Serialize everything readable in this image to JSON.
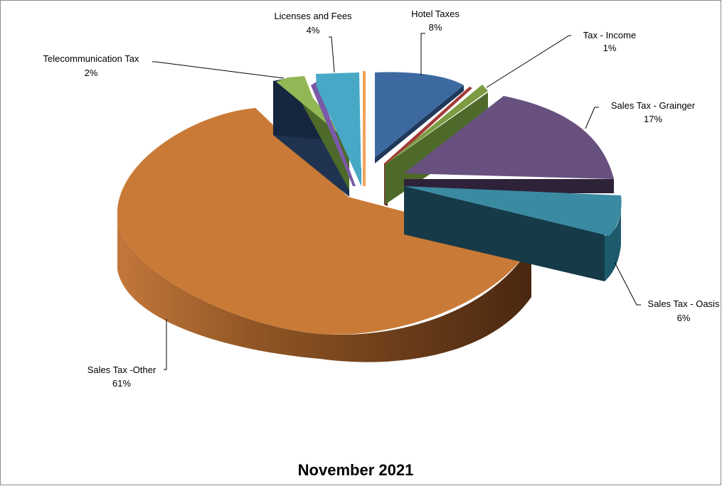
{
  "chart_data": {
    "type": "pie",
    "title": "November 2021",
    "slices": [
      {
        "label": "Hotel Taxes",
        "value": 8,
        "pct_text": "8%",
        "color": "#3c6aa0",
        "dark": "#20385a"
      },
      {
        "label": "(unlabeled)",
        "value": 0.4,
        "pct_text": "",
        "color": "#a33a36",
        "dark": "#5e1e1c"
      },
      {
        "label": "Tax - Income",
        "value": 1,
        "pct_text": "1%",
        "color": "#7c9b43",
        "dark": "#3f5a24"
      },
      {
        "label": "Sales Tax - Grainger",
        "value": 17,
        "pct_text": "17%",
        "color": "#68517f",
        "dark": "#2e2238"
      },
      {
        "label": "Sales Tax - Oasis",
        "value": 6,
        "pct_text": "6%",
        "color": "#3a8aa2",
        "dark": "#163a47"
      },
      {
        "label": "Sales Tax -Other",
        "value": 61,
        "pct_text": "61%",
        "color": "#c97a36",
        "dark": "#6a3a16"
      },
      {
        "label": "(unlabeled)",
        "value": 0.3,
        "pct_text": "",
        "color": "#1f3350",
        "dark": "#101c2c"
      },
      {
        "label": "Telecommunication Tax",
        "value": 2,
        "pct_text": "2%",
        "color": "#92b855",
        "dark": "#4e6a2a"
      },
      {
        "label": "(unlabeled)",
        "value": 0.5,
        "pct_text": "",
        "color": "#7a5aa8",
        "dark": "#3d2a58"
      },
      {
        "label": "Licenses and Fees",
        "value": 4,
        "pct_text": "4%",
        "color": "#48a9c6",
        "dark": "#1d5a6c"
      },
      {
        "label": "(unlabeled)",
        "value": 0.2,
        "pct_text": "",
        "color": "#f2a25a",
        "dark": "#8a5525"
      }
    ],
    "legend": "none",
    "data_labels": "outside-with-leader-lines"
  }
}
